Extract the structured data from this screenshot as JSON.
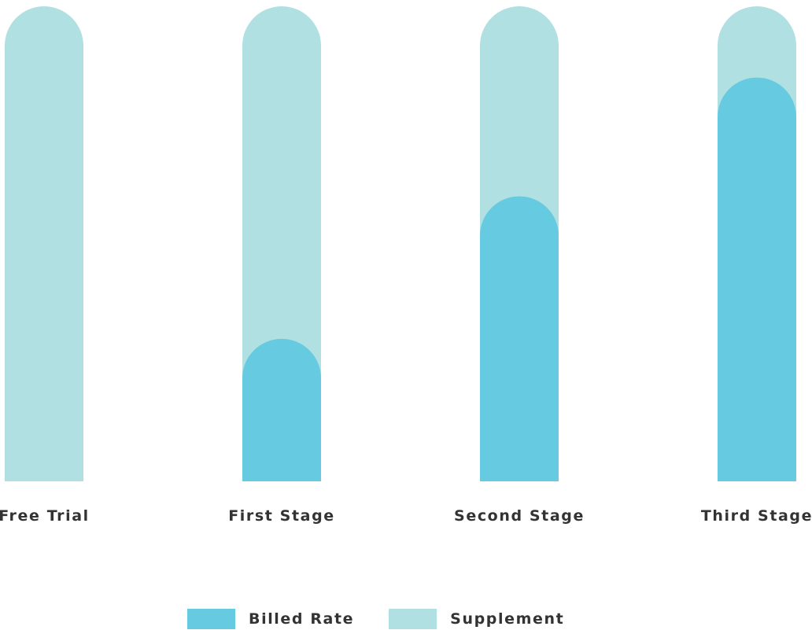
{
  "chart_data": {
    "type": "bar",
    "stacked": "overlay",
    "categories": [
      "Free Trial",
      "First Stage",
      "Second Stage",
      "Third Stage"
    ],
    "series": [
      {
        "name": "Billed Rate",
        "color": "#66cae0",
        "values": [
          0,
          30,
          60,
          85
        ]
      },
      {
        "name": "Supplement",
        "color": "#b1e0e2",
        "values": [
          100,
          100,
          100,
          100
        ]
      }
    ],
    "ylim": [
      0,
      100
    ],
    "grid": false,
    "legend": "bottom-center"
  }
}
